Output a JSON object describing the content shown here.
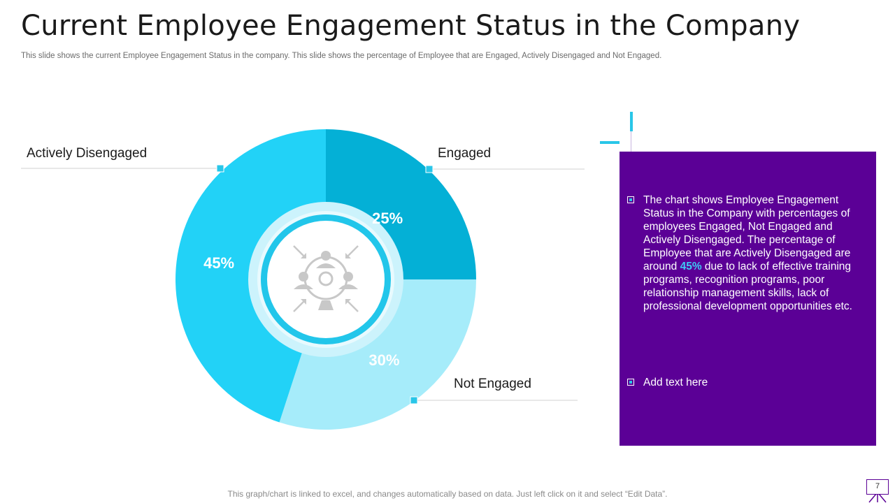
{
  "header": {
    "title": "Current Employee Engagement Status in the Company",
    "subtitle": "This slide shows the current Employee Engagement Status in the company. This slide shows the percentage of Employee that are Engaged, Actively  Disengaged and Not Engaged."
  },
  "chart_data": {
    "type": "pie",
    "variant": "donut",
    "title": "",
    "categories": [
      "Engaged",
      "Not Engaged",
      "Actively Disengaged"
    ],
    "values": [
      25,
      30,
      45
    ],
    "value_labels": [
      "25%",
      "30%",
      "45%"
    ],
    "colors": [
      "#04b0d6",
      "#a6ecfa",
      "#22d2f7"
    ],
    "center_icon": "team-meeting-icon"
  },
  "panel": {
    "point1_before": "The chart shows Employee Engagement Status in the Company with percentages of employees Engaged, Not Engaged and Actively Disengaged. The percentage of Employee that are Actively Disengaged are around ",
    "point1_highlight": "45%",
    "point1_after": " due to lack of effective training programs, recognition programs, poor relationship management skills, lack of professional development opportunities etc.",
    "point2": "Add text here",
    "highlight_color": "#3ec9f5",
    "background_color": "#5b0096"
  },
  "footer": {
    "note": "This graph/chart is linked to excel, and changes automatically based on data. Just left click on it and select “Edit Data”.",
    "page_number": "7"
  }
}
